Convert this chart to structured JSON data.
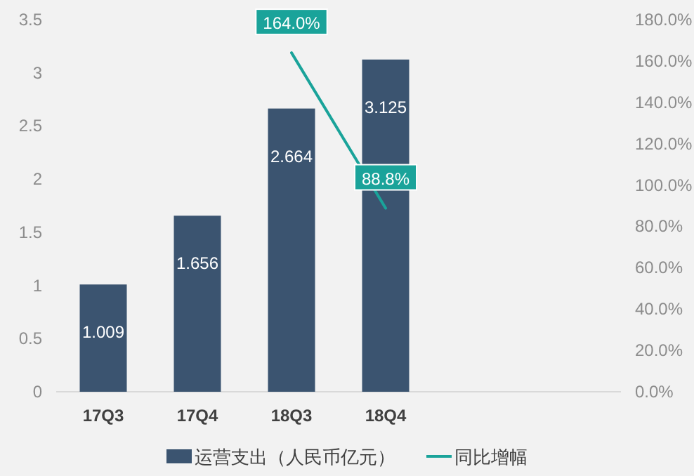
{
  "chart_data": {
    "type": "bar",
    "categories": [
      "17Q3",
      "17Q4",
      "18Q3",
      "18Q4",
      null,
      null
    ],
    "series": [
      {
        "name": "运营支出（人民币亿元）",
        "color": "#3b5470",
        "values": [
          1.009,
          1.656,
          2.664,
          3.125,
          null,
          null
        ],
        "value_labels": [
          "1.009",
          "1.656",
          "2.664",
          "3.125",
          null,
          null
        ]
      },
      {
        "name": "同比增幅",
        "type": "line",
        "axis": "y2",
        "color": "#1aa39a",
        "values": [
          null,
          null,
          164.0,
          88.8,
          null,
          null
        ],
        "value_labels": [
          null,
          null,
          "164.0%",
          "88.8%",
          null,
          null
        ]
      }
    ],
    "ylim": [
      0,
      3.5
    ],
    "yticks": [
      0,
      0.5,
      1,
      1.5,
      2,
      2.5,
      3,
      3.5
    ],
    "y2lim": [
      0,
      180
    ],
    "y2ticks": [
      {
        "value": 0,
        "label": "0.0%"
      },
      {
        "value": 20,
        "label": "20.0%"
      },
      {
        "value": 40,
        "label": "40.0%"
      },
      {
        "value": 60,
        "label": "60.0%"
      },
      {
        "value": 80,
        "label": "80.0%"
      },
      {
        "value": 100,
        "label": "100.0%"
      },
      {
        "value": 120,
        "label": "120.0%"
      },
      {
        "value": 140,
        "label": "140.0%"
      },
      {
        "value": 160,
        "label": "160.0%"
      },
      {
        "value": 180,
        "label": "180.0%"
      }
    ],
    "legend": "bottom"
  }
}
